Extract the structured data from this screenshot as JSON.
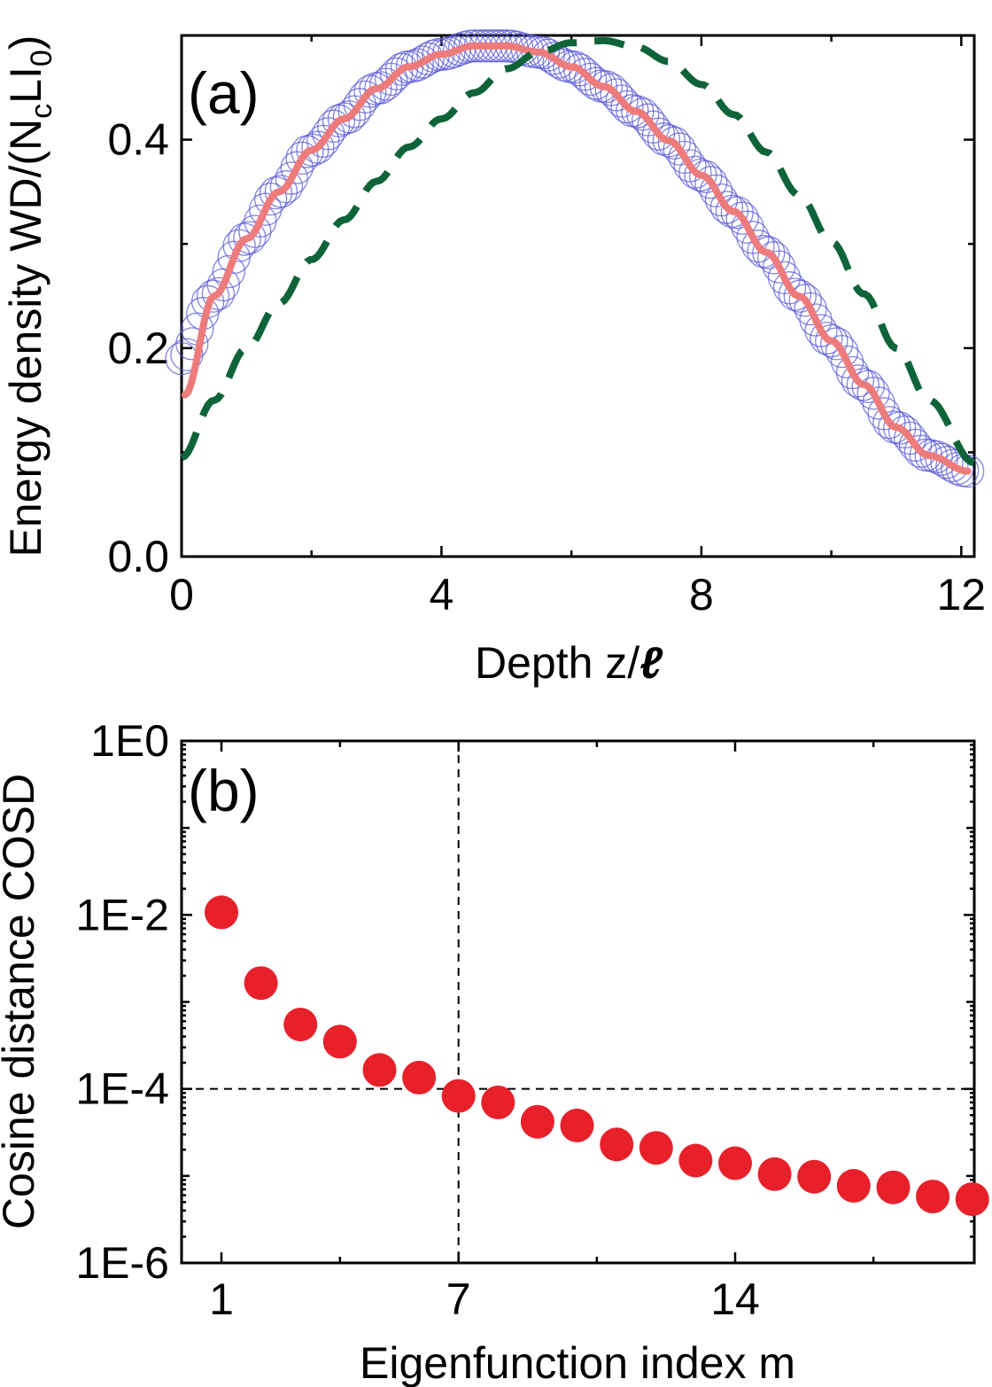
{
  "chart_data": [
    {
      "type": "line",
      "panel_label": "(a)",
      "xlabel": "Depth z/",
      "xlabel_italic": "ℓ",
      "ylabel_main": "Energy density WD/(N",
      "ylabel_sub1": "c",
      "ylabel_mid": "LI",
      "ylabel_sub2": "0",
      "ylabel_end": ")",
      "xlim": [
        0,
        12.2
      ],
      "ylim": [
        0,
        0.5
      ],
      "xticks": [
        "0",
        "4",
        "8",
        "12"
      ],
      "yticks": [
        "0.0",
        "0.2",
        "0.4"
      ],
      "grid": false,
      "series": [
        {
          "style": "open-circles",
          "color": "#5a5ad8",
          "x": [
            0,
            0.5,
            1,
            1.5,
            2,
            2.5,
            3,
            3.5,
            4,
            4.5,
            5,
            5.5,
            6,
            6.5,
            7,
            7.5,
            8,
            8.5,
            9,
            9.5,
            10,
            10.5,
            11,
            11.5,
            12.1
          ],
          "y": [
            0.19,
            0.25,
            0.305,
            0.35,
            0.39,
            0.42,
            0.449,
            0.47,
            0.482,
            0.49,
            0.49,
            0.484,
            0.47,
            0.451,
            0.427,
            0.399,
            0.366,
            0.331,
            0.292,
            0.25,
            0.207,
            0.165,
            0.124,
            0.097,
            0.082
          ]
        },
        {
          "style": "solid",
          "color": "#ee7b7b",
          "x": [
            0.05,
            0.5,
            1,
            1.5,
            2,
            2.5,
            3,
            3.5,
            4,
            4.5,
            5,
            5.5,
            6,
            6.5,
            7,
            7.5,
            8,
            8.5,
            9,
            9.5,
            10,
            10.5,
            11,
            11.5,
            12.1
          ],
          "y": [
            0.155,
            0.25,
            0.305,
            0.35,
            0.39,
            0.42,
            0.449,
            0.47,
            0.482,
            0.49,
            0.49,
            0.484,
            0.47,
            0.451,
            0.427,
            0.399,
            0.366,
            0.331,
            0.292,
            0.25,
            0.207,
            0.165,
            0.124,
            0.097,
            0.082
          ]
        },
        {
          "style": "dashed",
          "color": "#0e6438",
          "x": [
            0,
            0.5,
            1,
            1.5,
            2,
            2.5,
            3,
            3.5,
            4,
            4.5,
            5,
            5.5,
            6,
            6.5,
            7,
            7.5,
            8,
            8.5,
            9,
            9.5,
            10,
            10.5,
            11,
            11.5,
            12.2
          ],
          "y": [
            0.095,
            0.15,
            0.2,
            0.243,
            0.285,
            0.323,
            0.36,
            0.393,
            0.42,
            0.445,
            0.468,
            0.484,
            0.493,
            0.495,
            0.489,
            0.475,
            0.453,
            0.424,
            0.388,
            0.347,
            0.302,
            0.252,
            0.2,
            0.15,
            0.09
          ]
        }
      ]
    },
    {
      "type": "scatter",
      "panel_label": "(b)",
      "xlabel": "Eigenfunction index m",
      "ylabel": "Cosine distance COSD",
      "y_scale": "log",
      "xlim": [
        0,
        20
      ],
      "ylim": [
        1e-06,
        1
      ],
      "xticks": [
        "1",
        "7",
        "14"
      ],
      "yticks": [
        "1E0",
        "1E-2",
        "1E-4",
        "1E-6"
      ],
      "reference_lines": {
        "x": 7,
        "y": 0.0001
      },
      "marker_color": "#e8202a",
      "x": [
        1,
        2,
        3,
        4,
        5,
        6,
        7,
        8,
        9,
        10,
        11,
        12,
        13,
        14,
        15,
        16,
        17,
        18,
        19,
        20
      ],
      "y": [
        0.0107,
        0.00165,
        0.00055,
        0.00035,
        0.000165,
        0.000135,
        8.3e-05,
        7e-05,
        4.2e-05,
        3.8e-05,
        2.3e-05,
        2.1e-05,
        1.5e-05,
        1.4e-05,
        1.05e-05,
        9.8e-06,
        7.7e-06,
        7.4e-06,
        5.8e-06,
        5.4e-06
      ]
    }
  ]
}
